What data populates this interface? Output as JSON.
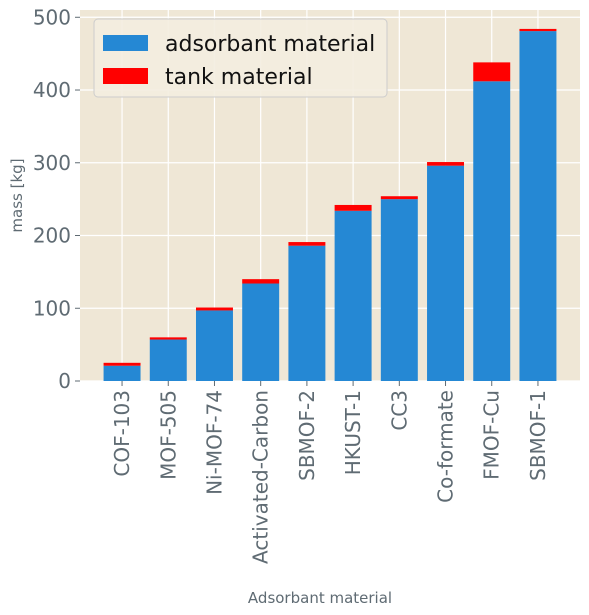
{
  "chart_data": {
    "type": "bar",
    "stacked": true,
    "title": "",
    "xlabel": "Adsorbant material",
    "ylabel": "mass [kg]",
    "ylim": [
      0,
      510
    ],
    "yticks": [
      0,
      100,
      200,
      300,
      400,
      500
    ],
    "grid": true,
    "legend_position": "top-left",
    "categories": [
      "COF-103",
      "MOF-505",
      "Ni-MOF-74",
      "Activated-Carbon",
      "SBMOF-2",
      "HKUST-1",
      "CC3",
      "Co-formate",
      "FMOF-Cu",
      "SBMOF-1"
    ],
    "series": [
      {
        "name": "adsorbant material",
        "color": "#2588d4",
        "values": [
          21,
          57,
          97,
          134,
          186,
          234,
          250,
          296,
          412,
          481
        ]
      },
      {
        "name": "tank material",
        "color": "#ff0000",
        "values": [
          4,
          3,
          4,
          6,
          5,
          8,
          4,
          5,
          26,
          3
        ]
      }
    ]
  },
  "style": {
    "plot_background": "#efe7d6",
    "grid_color": "#ffffff",
    "text_color": "#5f6b73"
  }
}
